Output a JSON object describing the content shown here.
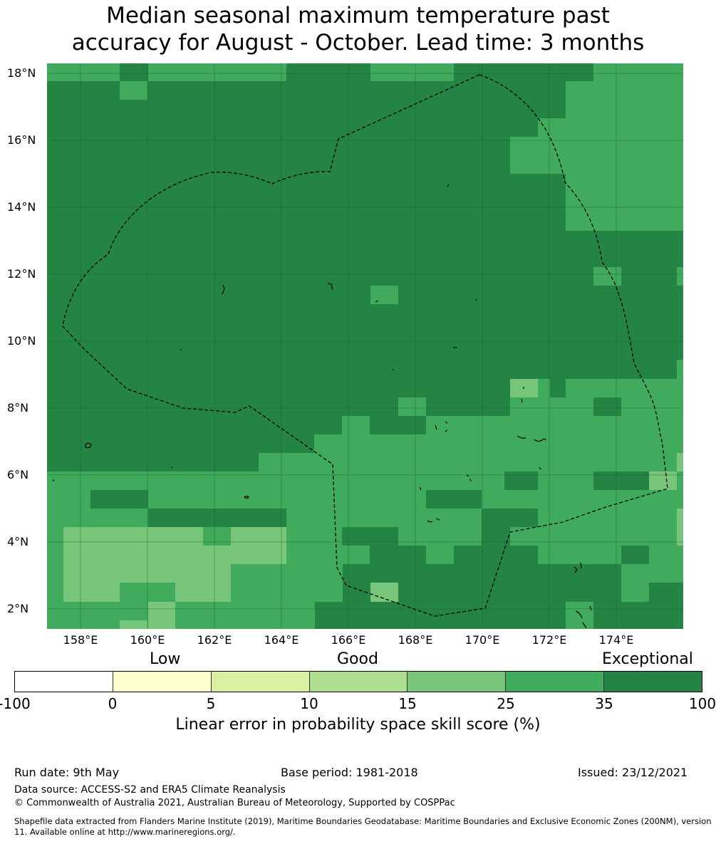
{
  "title": {
    "line1": "Median seasonal maximum temperature past",
    "line2": "accuracy for August - October. Lead time: 3 months"
  },
  "map": {
    "lat_labels": [
      "18°N",
      "16°N",
      "14°N",
      "12°N",
      "10°N",
      "8°N",
      "6°N",
      "4°N",
      "2°N"
    ],
    "lon_labels": [
      "158°E",
      "160°E",
      "162°E",
      "164°E",
      "166°E",
      "168°E",
      "170°E",
      "172°E",
      "174°E"
    ],
    "lon_range": [
      157,
      176
    ],
    "lat_range": [
      1.4,
      18.3
    ],
    "grid_lines": true
  },
  "colorbar": {
    "skill_words": [
      "Low",
      "Good",
      "Exceptional"
    ],
    "colors": [
      "#ffffff",
      "#ffffcc",
      "#d9f0a3",
      "#addd8e",
      "#78c679",
      "#41ab5d",
      "#238443"
    ],
    "ticks": [
      "-100",
      "0",
      "5",
      "10",
      "15",
      "25",
      "35",
      "100"
    ],
    "label": "Linear error in probability space skill score (%)"
  },
  "footer": {
    "run_date": "Run date: 9th May",
    "base_period": "Base period: 1981-2018",
    "issued": "Issued: 23/12/2021",
    "data_source": "Data source: ACCESS-S2 and ERA5 Climate Reanalysis",
    "copyright": "© Commonwealth of Australia 2021, Australian Bureau of Meteorology, Supported by COSPPac",
    "shapefile": "Shapefile data extracted from Flanders Marine Institute (2019), Maritime Boundaries Geodatabase: Maritime Boundaries and Exclusive Economic Zones (200NM), version 11. Available online at http://www.marineregions.org/."
  }
}
